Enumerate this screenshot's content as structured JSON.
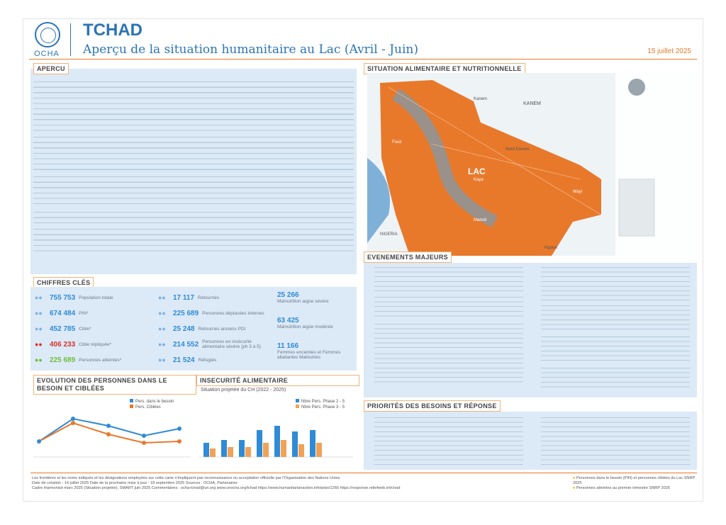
{
  "header": {
    "org": "OCHA",
    "title": "TCHAD",
    "subtitle": "Aperçu de la situation humanitaire au Lac (Avril - Juin)",
    "date": "15 juillet 2025"
  },
  "sections": {
    "apercu": "APERCU",
    "situation": "SITUATION ALIMENTAIRE ET NUTRITIONNELLE",
    "chiffres": "CHIFFRES CLÉS",
    "evolution": "EVOLUTION DES PERSONNES DANS LE BESOIN ET CIBLÉES",
    "insecurite": "INSECURITÉ ALIMENTAIRE",
    "insecurite_sub": "Situation projetée du CH (2022 - 2025)",
    "evenements": "EVENEMENTS MAJEURS",
    "priorites": "PRIORITÉS DES BESOINS ET RÉPONSE"
  },
  "map": {
    "labels": [
      "Kanem",
      "KANEM",
      "Nord Kanem",
      "LAC",
      "Fouli",
      "Kaya",
      "Mamdi",
      "Wayi",
      "NIGERIA",
      "Ngouri"
    ],
    "colors": {
      "region": "#e8792b",
      "water": "#7fb0d8",
      "land": "#dfe6ea"
    }
  },
  "key_figures": {
    "left": [
      {
        "value": "755 753",
        "label": "Population totale",
        "icon": "people-icon"
      },
      {
        "value": "674 484",
        "label": "PIN*",
        "icon": "people-icon"
      },
      {
        "value": "452 785",
        "label": "Cible*",
        "icon": "target-icon"
      },
      {
        "value": "406 233",
        "label": "Cible répliquée*",
        "icon": "warning-people-icon"
      },
      {
        "value": "225 689",
        "label": "Personnes atteintes*",
        "icon": "handshake-icon"
      }
    ],
    "middle": [
      {
        "value": "17 117",
        "label": "Retournés",
        "icon": "return-icon"
      },
      {
        "value": "225 689",
        "label": "Personnes déplacées internes",
        "icon": "displaced-icon"
      },
      {
        "value": "25 248",
        "label": "Retournés anciens PDI",
        "icon": "return-icon"
      },
      {
        "value": "214 552",
        "label": "Personnes en insécurité alimentaire sévère (ph 3 à 5)",
        "icon": "food-icon"
      },
      {
        "value": "21 524",
        "label": "Réfugiés",
        "icon": "refugee-icon"
      }
    ],
    "right": [
      {
        "value": "25 266",
        "label": "Malnutrition aigüe sévère",
        "icon": "child-icon"
      },
      {
        "value": "63 425",
        "label": "Malnutrition aigüe modérée",
        "icon": "child-icon"
      },
      {
        "value": "11 166",
        "label": "Femmes enceintes et Femmes allaitantes Malnutries",
        "icon": "woman-icon"
      }
    ]
  },
  "evolution_chart": {
    "legend": [
      "Pers. dans le besoin",
      "Pers. Ciblées"
    ]
  },
  "insecurite_chart": {
    "legend": [
      "Nbre Pers. Phase 2 - 5",
      "Nbre Pers. Phase 3 - 5"
    ]
  },
  "footer": {
    "line1": "Les frontières et les noms indiqués et les désignations employées sur cette carte n'impliquent pas reconnaissance ou acceptation officielle par l'Organisation des Nations Unies",
    "line2": "Date de création : 14 juillet 2025   Date de la prochaine mise à jour : 18 septembre 2025   Sources : OCHA, Partenaires",
    "line3": "Cadre Harmonisé mars 2025 (Situation projetée), SMART juin 2025   Commentaires : ocha-tchad@un.org   www.unocha.org/tchad   https://www.humanitarianaction.info/plan/1266   https://response.reliefweb.int/chad",
    "legend1": "Personnes dans le besoin (PIN) et personnes ciblées du Lac SNRP 2025",
    "legend2": "Personnes atteintes au premier trimestre SNRP 2025"
  },
  "colors": {
    "accent": "#2a74b6",
    "orange": "#e8792b",
    "panel": "#dce9f6",
    "bar_blue": "#2f8bd6",
    "bar_orange": "#f0a256"
  }
}
